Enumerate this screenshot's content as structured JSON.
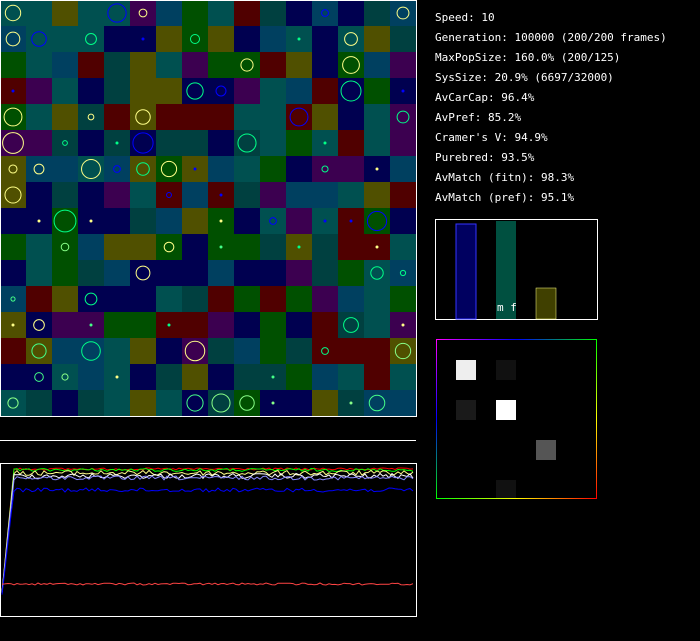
{
  "stats": [
    "Speed: 10",
    "Generation: 100000 (200/200 frames)",
    "MaxPopSize: 160.0% (200/125)",
    "SysSize: 20.9% (6697/32000)",
    "AvCarCap: 96.4%",
    "AvPref: 85.2%",
    "Cramer's V: 94.9%",
    "Purebred: 93.5%",
    "AvMatch (fitn): 98.3%",
    "AvMatch (pref): 95.1%"
  ],
  "bar_label": "m f"
}
